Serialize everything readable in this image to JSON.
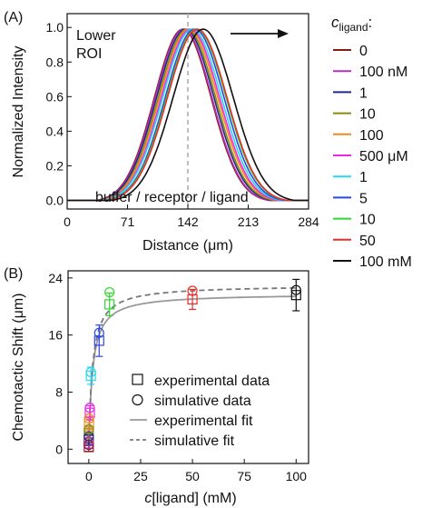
{
  "chart_data": [
    {
      "panel": "(A)",
      "type": "line",
      "ylabel": "Normalized Intensity",
      "xlabel": "Distance (μm)",
      "xlim": [
        0,
        284
      ],
      "ylim": [
        -0.05,
        1.08
      ],
      "xticks": [
        "0",
        "71",
        "142",
        "213",
        "284"
      ],
      "yticks": [
        "0.0",
        "0.2",
        "0.4",
        "0.6",
        "0.8",
        "1.0"
      ],
      "annotations": {
        "roi": "Lower\nROI",
        "bottom": "buffer / receptor / ligand"
      },
      "guide_line_x": 142,
      "legend_title": "c",
      "legend_title_sub": "ligand",
      "legend_title_suffix": ":",
      "series": [
        {
          "name": "0",
          "color": "#8b1a1a",
          "peak_x": 136,
          "width": 80
        },
        {
          "name": "100 nM",
          "color": "#b530b8",
          "peak_x": 137,
          "width": 80
        },
        {
          "name": "1",
          "color": "#1d2a8c",
          "peak_x": 139,
          "width": 81
        },
        {
          "name": "10",
          "color": "#8a8a12",
          "peak_x": 141,
          "width": 81
        },
        {
          "name": "100",
          "color": "#f08c1e",
          "peak_x": 143,
          "width": 82
        },
        {
          "name": "500 μM",
          "color": "#ee27ee",
          "peak_x": 145,
          "width": 82
        },
        {
          "name": "1",
          "color": "#25d9ee",
          "peak_x": 147,
          "width": 83
        },
        {
          "name": "5",
          "color": "#2b46e8",
          "peak_x": 150,
          "width": 83
        },
        {
          "name": "10",
          "color": "#2ed62e",
          "peak_x": 152,
          "width": 84
        },
        {
          "name": "50",
          "color": "#ee2a2a",
          "peak_x": 153,
          "width": 84
        },
        {
          "name": "100 mM",
          "color": "#111111",
          "peak_x": 160,
          "width": 85
        }
      ]
    },
    {
      "panel": "(B)",
      "type": "scatter",
      "ylabel": "Chemotactic Shift (μm)",
      "xlabel_italic": "c",
      "xlabel_rest": "[ligand] (mM)",
      "xlim": [
        -10,
        106
      ],
      "ylim": [
        -2,
        25
      ],
      "xticks": [
        0,
        25,
        50,
        75,
        100
      ],
      "yticks": [
        0,
        8,
        16,
        24
      ],
      "legend": [
        "experimental data",
        "simulative data",
        "experimental fit",
        "simulative fit"
      ],
      "experimental": [
        {
          "x": 0,
          "y": 0.3,
          "err": 0.6,
          "color": "#8b1a1a"
        },
        {
          "x": 0.0001,
          "y": 0.8,
          "err": 0.7,
          "color": "#b530b8"
        },
        {
          "x": 0.001,
          "y": 1.3,
          "err": 0.8,
          "color": "#1d2a8c"
        },
        {
          "x": 0.01,
          "y": 2.2,
          "err": 1.0,
          "color": "#8a8a12"
        },
        {
          "x": 0.1,
          "y": 3.6,
          "err": 1.0,
          "color": "#f08c1e"
        },
        {
          "x": 0.5,
          "y": 5.1,
          "err": 1.0,
          "color": "#ee27ee"
        },
        {
          "x": 1,
          "y": 10.3,
          "err": 1.2,
          "color": "#25d9ee"
        },
        {
          "x": 5,
          "y": 15.2,
          "err": 2.2,
          "color": "#2b46e8"
        },
        {
          "x": 10,
          "y": 20.3,
          "err": 1.6,
          "color": "#2ed62e"
        },
        {
          "x": 50,
          "y": 21.0,
          "err": 1.4,
          "color": "#ee2a2a"
        },
        {
          "x": 100,
          "y": 21.6,
          "err": 2.2,
          "color": "#111111"
        }
      ],
      "simulative": [
        {
          "x": 0,
          "y": 0.6,
          "color": "#8b1a1a"
        },
        {
          "x": 0.0001,
          "y": 1.1,
          "color": "#b530b8"
        },
        {
          "x": 0.001,
          "y": 1.8,
          "color": "#1d2a8c"
        },
        {
          "x": 0.01,
          "y": 2.8,
          "color": "#8a8a12"
        },
        {
          "x": 0.1,
          "y": 4.3,
          "color": "#f08c1e"
        },
        {
          "x": 0.5,
          "y": 5.8,
          "color": "#ee27ee"
        },
        {
          "x": 1,
          "y": 10.8,
          "color": "#25d9ee"
        },
        {
          "x": 5,
          "y": 16.3,
          "color": "#2b46e8"
        },
        {
          "x": 10,
          "y": 22.0,
          "color": "#2ed62e"
        },
        {
          "x": 50,
          "y": 22.2,
          "color": "#ee2a2a"
        },
        {
          "x": 100,
          "y": 22.3,
          "color": "#111111"
        }
      ],
      "fits": [
        {
          "name": "experimental fit",
          "style": "solid",
          "color": "#999999",
          "ymax": 21.8,
          "k": 1.8
        },
        {
          "name": "simulative fit",
          "style": "dashed",
          "color": "#777777",
          "ymax": 23.0,
          "k": 1.8
        }
      ]
    }
  ]
}
